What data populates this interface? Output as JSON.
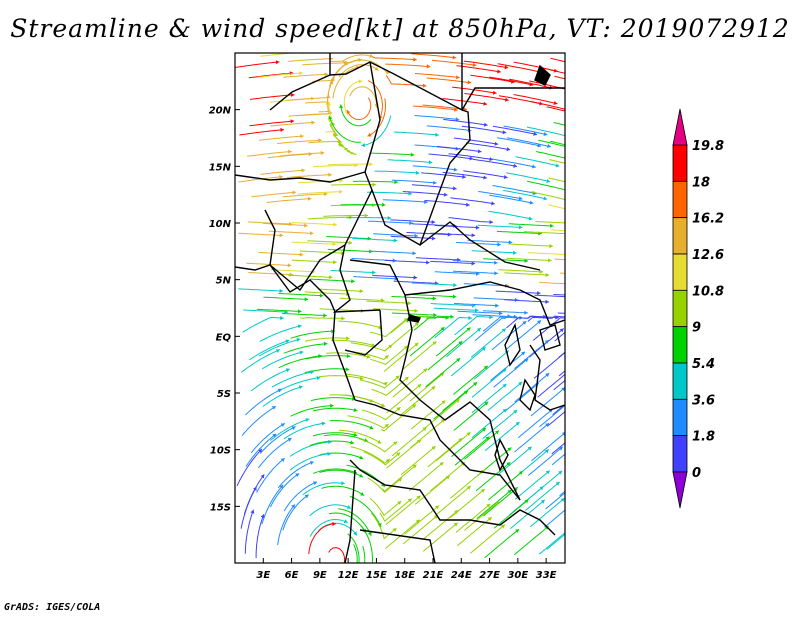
{
  "title": "Streamline & wind speed[kt] at 850hPa, VT: 2019072912",
  "credit": "GrADS: IGES/COLA",
  "map": {
    "lon_range": [
      0,
      35
    ],
    "lat_range": [
      -20,
      25
    ],
    "lon_ticks": [
      {
        "value": 3,
        "label": "3E"
      },
      {
        "value": 6,
        "label": "6E"
      },
      {
        "value": 9,
        "label": "9E"
      },
      {
        "value": 12,
        "label": "12E"
      },
      {
        "value": 15,
        "label": "15E"
      },
      {
        "value": 18,
        "label": "18E"
      },
      {
        "value": 21,
        "label": "21E"
      },
      {
        "value": 24,
        "label": "24E"
      },
      {
        "value": 27,
        "label": "27E"
      },
      {
        "value": 30,
        "label": "30E"
      },
      {
        "value": 33,
        "label": "33E"
      }
    ],
    "lat_ticks": [
      {
        "value": 20,
        "label": "20N"
      },
      {
        "value": 15,
        "label": "15N"
      },
      {
        "value": 10,
        "label": "10N"
      },
      {
        "value": 5,
        "label": "5N"
      },
      {
        "value": 0,
        "label": "EQ"
      },
      {
        "value": -5,
        "label": "5S"
      },
      {
        "value": -10,
        "label": "10S"
      },
      {
        "value": -15,
        "label": "15S"
      }
    ]
  },
  "colorbar": {
    "labels": [
      "0",
      "1.8",
      "3.6",
      "5.4",
      "9",
      "10.8",
      "12.6",
      "16.2",
      "18",
      "19.8"
    ],
    "colors": [
      "#8f00d8",
      "#4040ff",
      "#1e8cff",
      "#00c8c8",
      "#00d200",
      "#96d200",
      "#e6dc32",
      "#e6af2d",
      "#ff6400",
      "#ff0000",
      "#e60082"
    ]
  }
}
